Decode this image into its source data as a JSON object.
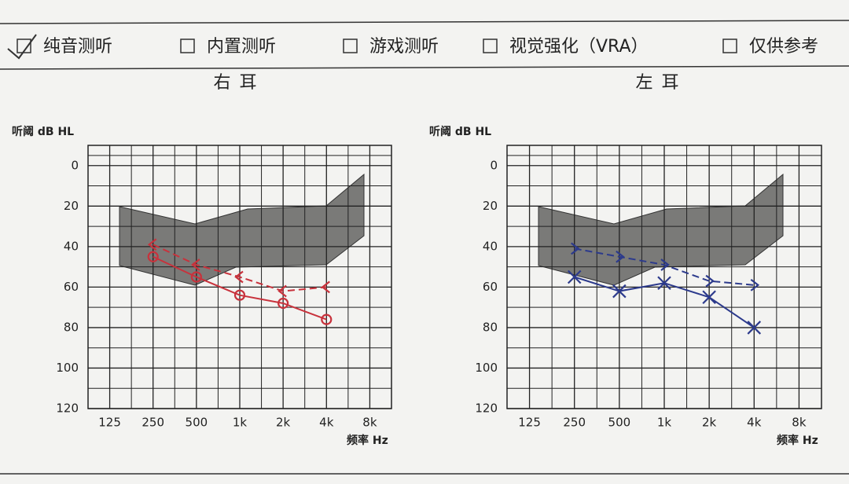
{
  "header": {
    "options": [
      "纯音测听",
      "内置测听",
      "游戏测听",
      "视觉强化（VRA）",
      "仅供参考"
    ],
    "checked": 0
  },
  "chart_data": [
    {
      "type": "line",
      "title": "右 耳",
      "y_label": "听阈 dB HL",
      "x_label": "频率 Hz",
      "categories": [
        "125",
        "250",
        "500",
        "1k",
        "2k",
        "4k",
        "8k"
      ],
      "ylim": [
        -10,
        120
      ],
      "yticks": [
        0,
        20,
        40,
        60,
        80,
        100,
        120
      ],
      "y_inverted": true,
      "grid": true,
      "series": [
        {
          "color": "#c8323c",
          "marker": "o",
          "dashed": false,
          "values": [
            null,
            45,
            55,
            64,
            68,
            76,
            null
          ]
        },
        {
          "color": "#c8323c",
          "marker": "<",
          "dashed": true,
          "values": [
            null,
            39,
            49,
            55,
            62,
            60,
            null
          ]
        }
      ]
    },
    {
      "type": "line",
      "title": "左 耳",
      "y_label": "听阈 dB HL",
      "x_label": "频率 Hz",
      "categories": [
        "125",
        "250",
        "500",
        "1k",
        "2k",
        "4k",
        "8k"
      ],
      "ylim": [
        -10,
        120
      ],
      "yticks": [
        0,
        20,
        40,
        60,
        80,
        100,
        120
      ],
      "y_inverted": true,
      "grid": true,
      "series": [
        {
          "color": "#2c3a8c",
          "marker": "x",
          "dashed": false,
          "values": [
            null,
            55,
            62,
            58,
            65,
            80,
            null
          ]
        },
        {
          "color": "#2c3a8c",
          "marker": ">",
          "dashed": true,
          "values": [
            null,
            41,
            45,
            49,
            57,
            59,
            null
          ]
        }
      ]
    }
  ]
}
